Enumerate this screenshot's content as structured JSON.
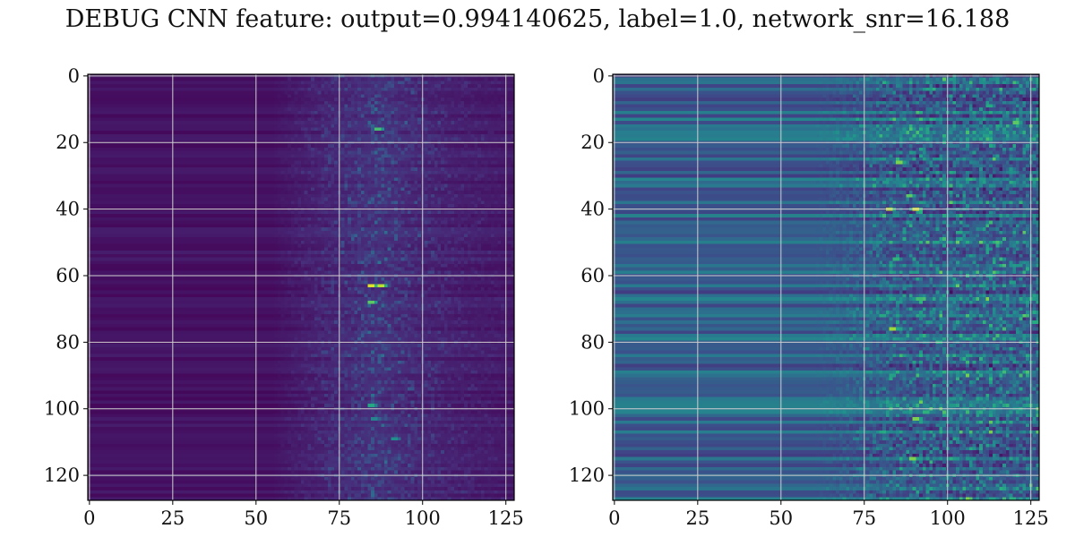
{
  "title": "DEBUG CNN feature: output=0.994140625, label=1.0, network_snr=16.188",
  "chart_data": [
    {
      "type": "heatmap",
      "title": "",
      "xlabel": "",
      "ylabel": "",
      "rows": 128,
      "cols": 128,
      "xlim": [
        0,
        128
      ],
      "ylim": [
        128,
        0
      ],
      "x_ticks": [
        0,
        25,
        50,
        75,
        100,
        125
      ],
      "y_ticks": [
        0,
        20,
        40,
        60,
        80,
        100,
        120
      ],
      "colormap": "viridis",
      "grid": true,
      "intensity_profile": {
        "onset_col": 55,
        "peak_col": 87,
        "background": 0.02,
        "hotspots": [
          {
            "row": 63,
            "col": 84,
            "value": 0.95
          },
          {
            "row": 63,
            "col": 87,
            "value": 0.9
          },
          {
            "row": 68,
            "col": 84,
            "value": 0.75
          },
          {
            "row": 16,
            "col": 86,
            "value": 0.7
          },
          {
            "row": 99,
            "col": 84,
            "value": 0.6
          },
          {
            "row": 109,
            "col": 91,
            "value": 0.5
          },
          {
            "row": 103,
            "col": 85,
            "value": 0.45
          }
        ]
      }
    },
    {
      "type": "heatmap",
      "title": "",
      "xlabel": "",
      "ylabel": "",
      "rows": 128,
      "cols": 128,
      "xlim": [
        0,
        128
      ],
      "ylim": [
        128,
        0
      ],
      "x_ticks": [
        0,
        25,
        50,
        75,
        100,
        125
      ],
      "y_ticks": [
        0,
        20,
        40,
        60,
        80,
        100,
        120
      ],
      "colormap": "viridis",
      "grid": true,
      "intensity_profile": {
        "onset_col": 60,
        "peak_col": 90,
        "background": 0.18,
        "hotspots": [
          {
            "row": 40,
            "col": 82,
            "value": 0.9
          },
          {
            "row": 40,
            "col": 90,
            "value": 0.95
          },
          {
            "row": 36,
            "col": 88,
            "value": 0.75
          },
          {
            "row": 26,
            "col": 85,
            "value": 0.8
          },
          {
            "row": 76,
            "col": 83,
            "value": 0.85
          },
          {
            "row": 103,
            "col": 90,
            "value": 0.8
          },
          {
            "row": 115,
            "col": 89,
            "value": 0.8
          },
          {
            "row": 14,
            "col": 120,
            "value": 0.75
          },
          {
            "row": 9,
            "col": 112,
            "value": 0.6
          },
          {
            "row": 55,
            "col": 84,
            "value": 0.65
          },
          {
            "row": 72,
            "col": 80,
            "value": 0.6
          },
          {
            "row": 47,
            "col": 103,
            "value": 0.6
          }
        ]
      }
    }
  ]
}
